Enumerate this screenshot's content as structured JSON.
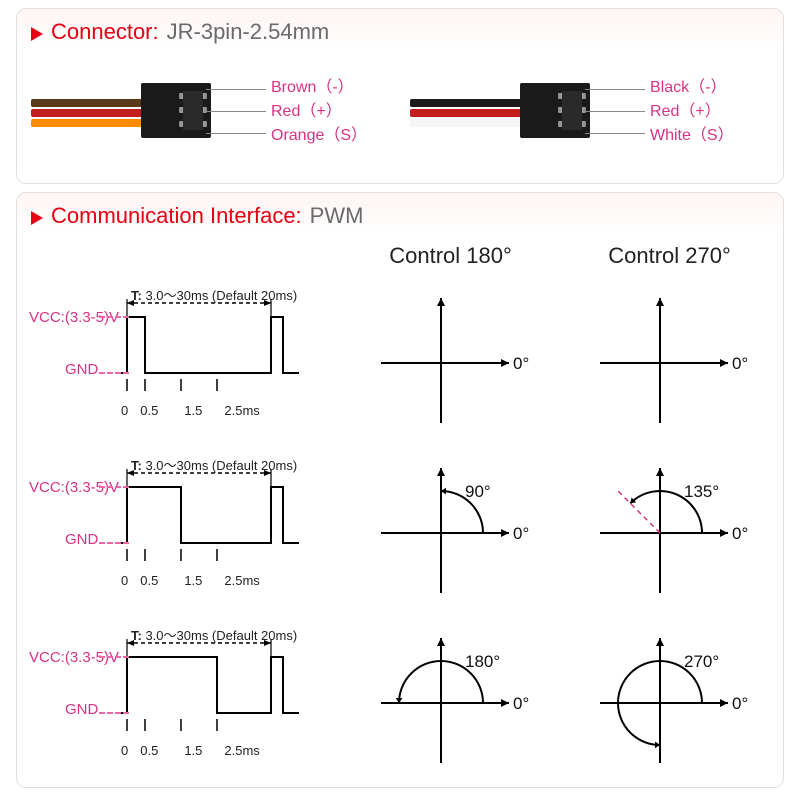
{
  "connector_section": {
    "header_label": "Connector:",
    "header_value": "JR-3pin-2.54mm",
    "left": {
      "wire_colors": [
        "#5a3a1a",
        "#c41e1e",
        "#ff8c00"
      ],
      "connector_color": "#1a1a1a",
      "labels": [
        {
          "text": "Brown（-）",
          "color": "#d63384"
        },
        {
          "text": "Red（+）",
          "color": "#d63384"
        },
        {
          "text": "Orange（S）",
          "color": "#d63384"
        }
      ]
    },
    "right": {
      "wire_colors": [
        "#1a1a1a",
        "#c41e1e",
        "#f5f5f5"
      ],
      "connector_color": "#1a1a1a",
      "labels": [
        {
          "text": "Black（-）",
          "color": "#d63384"
        },
        {
          "text": "Red（+）",
          "color": "#d63384"
        },
        {
          "text": "White（S）",
          "color": "#d63384"
        }
      ]
    }
  },
  "pwm_section": {
    "header_label": "Communication Interface:",
    "header_value": "PWM",
    "vcc_label": "VCC:(3.3-5)V",
    "gnd_label": "GND",
    "period_label": "T: 3.0～30ms (Default 20ms)",
    "tick_labels": [
      "0",
      "0.5",
      "1.5",
      "2.5ms"
    ],
    "zero_label": "0°",
    "col_180": "Control 180°",
    "col_270": "Control 270°",
    "rows": [
      {
        "pulse_ms": 0.5,
        "series_color": "#000000",
        "angle_180": 0,
        "label_180": "",
        "angle_270": 0,
        "label_270": ""
      },
      {
        "pulse_ms": 1.5,
        "series_color": "#000000",
        "angle_180": 90,
        "label_180": "90°",
        "angle_270": 135,
        "label_270": "135°",
        "dash_270_color": "#d63384"
      },
      {
        "pulse_ms": 2.5,
        "series_color": "#000000",
        "angle_180": 180,
        "label_180": "180°",
        "angle_270": 270,
        "label_270": "270°"
      }
    ],
    "axis_color": "#000000",
    "arc_color": "#000000",
    "dash_line_width": 1.5,
    "line_width": 2
  },
  "palette": {
    "accent_red": "#e60012",
    "magenta": "#d63384",
    "gray_text": "#6a6a6a",
    "section_top_tint": "#fff4f4",
    "border": "#e0e0e0"
  }
}
